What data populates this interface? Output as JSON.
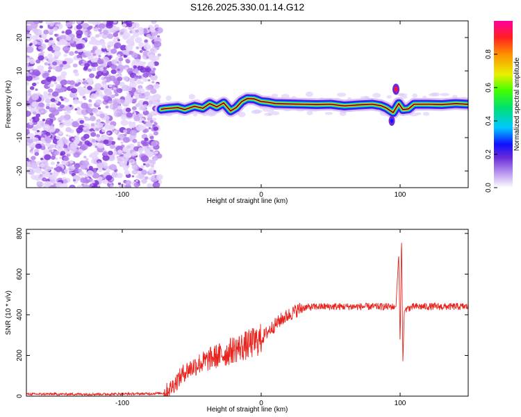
{
  "title": "S126.2025.330.01.14.G12",
  "chart_data": [
    {
      "type": "heatmap",
      "xlabel": "Height of straight line (km)",
      "ylabel": "Frequency (Hz)",
      "xlim": [
        -169,
        149
      ],
      "ylim": [
        -25,
        25
      ],
      "xticks": [
        -100,
        0,
        100
      ],
      "yticks": [
        -20,
        -10,
        0,
        10,
        20
      ],
      "colorbar": {
        "label": "Normalized spectral amplitude",
        "range": [
          0,
          1
        ],
        "ticks": [
          0.0,
          0.2,
          0.4,
          0.6,
          0.8
        ]
      },
      "noise_region_x": [
        -169,
        -73
      ],
      "tone_track": [
        {
          "x": -72,
          "f": -1.5
        },
        {
          "x": -66,
          "f": -1.2
        },
        {
          "x": -60,
          "f": -1.0
        },
        {
          "x": -55,
          "f": -1.6
        },
        {
          "x": -48,
          "f": -0.6
        },
        {
          "x": -42,
          "f": -1.2
        },
        {
          "x": -37,
          "f": 0.2
        },
        {
          "x": -32,
          "f": -0.8
        },
        {
          "x": -27,
          "f": 0.4
        },
        {
          "x": -22,
          "f": -2.0
        },
        {
          "x": -18,
          "f": -1.0
        },
        {
          "x": -14,
          "f": 0.8
        },
        {
          "x": -10,
          "f": 1.7
        },
        {
          "x": -5,
          "f": 1.6
        },
        {
          "x": 0,
          "f": 0.8
        },
        {
          "x": 5,
          "f": 0.6
        },
        {
          "x": 10,
          "f": 0.2
        },
        {
          "x": 20,
          "f": 0.1
        },
        {
          "x": 30,
          "f": 0.0
        },
        {
          "x": 40,
          "f": -0.1
        },
        {
          "x": 50,
          "f": 0.0
        },
        {
          "x": 60,
          "f": -0.5
        },
        {
          "x": 70,
          "f": -0.2
        },
        {
          "x": 80,
          "f": 0.0
        },
        {
          "x": 86,
          "f": -0.4
        },
        {
          "x": 90,
          "f": -1.1
        },
        {
          "x": 95,
          "f": -2.5
        },
        {
          "x": 99,
          "f": 0.2
        },
        {
          "x": 102,
          "f": -1.6
        },
        {
          "x": 106,
          "f": -1.4
        },
        {
          "x": 110,
          "f": 0.0
        },
        {
          "x": 120,
          "f": 0.0
        },
        {
          "x": 130,
          "f": -0.1
        },
        {
          "x": 140,
          "f": 0.2
        },
        {
          "x": 149,
          "f": 0.0
        }
      ]
    },
    {
      "type": "line",
      "xlabel": "Height of straight line (km)",
      "ylabel": "SNR (10 * v/v)",
      "xlim": [
        -169,
        149
      ],
      "ylim": [
        0,
        820
      ],
      "xticks": [
        -100,
        0,
        100
      ],
      "yticks": [
        0,
        200,
        400,
        600,
        800
      ],
      "color": "#e8231e",
      "series": [
        {
          "x": [
            -169,
            -140,
            -110,
            -80,
            -70,
            -65,
            -60,
            -55,
            -50,
            -45,
            -40,
            -35,
            -30,
            -25,
            -20,
            -15,
            -10,
            -5,
            0,
            5,
            10,
            15,
            20,
            25,
            30,
            40,
            50,
            60,
            70,
            80,
            90,
            97,
            99,
            100,
            101,
            102,
            103,
            105,
            110,
            120,
            130,
            140,
            149
          ],
          "y": [
            10,
            10,
            10,
            12,
            15,
            40,
            80,
            120,
            140,
            160,
            170,
            190,
            200,
            210,
            230,
            240,
            250,
            265,
            280,
            320,
            350,
            380,
            400,
            420,
            435,
            440,
            440,
            440,
            440,
            440,
            440,
            440,
            700,
            250,
            800,
            160,
            420,
            430,
            440,
            440,
            440,
            440,
            440
          ]
        }
      ]
    }
  ]
}
